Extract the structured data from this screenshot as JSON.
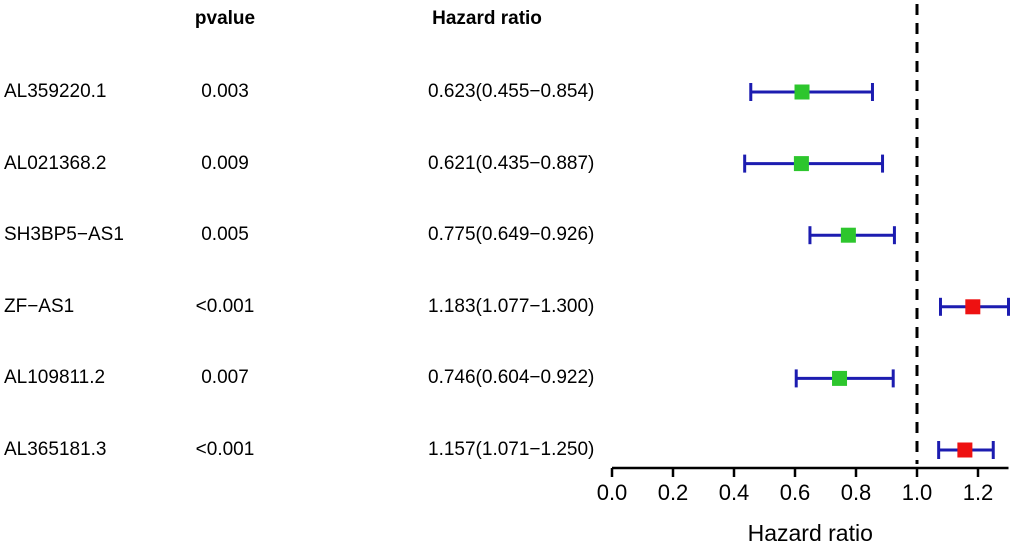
{
  "colors": {
    "ci_bar": "#1c1cb0",
    "marker_protective": "#2dc62d",
    "marker_risk": "#ee1111",
    "axis": "#000000",
    "reference_line": "#000000",
    "text": "#000000"
  },
  "chart_data": {
    "type": "scatter",
    "variant": "forest-plot",
    "title": "",
    "xlabel": "Hazard ratio",
    "xlim": [
      0.0,
      1.3
    ],
    "xticks": [
      0.0,
      0.2,
      0.4,
      0.6,
      0.8,
      1.0,
      1.2
    ],
    "reference_line_x": 1.0,
    "grid": false,
    "columns": {
      "pvalue": "pvalue",
      "hazard_ratio": "Hazard ratio"
    },
    "points": [
      {
        "gene": "AL359220.1",
        "pvalue": "0.003",
        "hr_text": "0.623(0.455−0.854)",
        "hr": 0.623,
        "low": 0.455,
        "high": 0.854
      },
      {
        "gene": "AL021368.2",
        "pvalue": "0.009",
        "hr_text": "0.621(0.435−0.887)",
        "hr": 0.621,
        "low": 0.435,
        "high": 0.887
      },
      {
        "gene": "SH3BP5−AS1",
        "pvalue": "0.005",
        "hr_text": "0.775(0.649−0.926)",
        "hr": 0.775,
        "low": 0.649,
        "high": 0.926
      },
      {
        "gene": "ZF−AS1",
        "pvalue": "<0.001",
        "hr_text": "1.183(1.077−1.300)",
        "hr": 1.183,
        "low": 1.077,
        "high": 1.3
      },
      {
        "gene": "AL109811.2",
        "pvalue": "0.007",
        "hr_text": "0.746(0.604−0.922)",
        "hr": 0.746,
        "low": 0.604,
        "high": 0.922
      },
      {
        "gene": "AL365181.3",
        "pvalue": "<0.001",
        "hr_text": "1.157(1.071−1.250)",
        "hr": 1.157,
        "low": 1.071,
        "high": 1.25
      }
    ]
  }
}
